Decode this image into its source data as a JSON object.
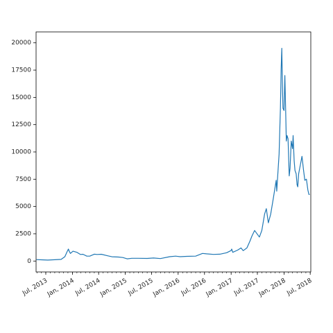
{
  "chart_data": {
    "type": "line",
    "title": "",
    "xlabel": "",
    "ylabel": "",
    "grid": false,
    "legend": "none",
    "line_color": "#1f77b4",
    "xlim": [
      "2013-04-25",
      "2018-07-05"
    ],
    "ylim": [
      -1000,
      21000
    ],
    "y_ticks": [
      0,
      2500,
      5000,
      7500,
      10000,
      12500,
      15000,
      17500,
      20000
    ],
    "y_tick_labels": [
      "0",
      "2500",
      "5000",
      "7500",
      "10000",
      "12500",
      "15000",
      "17500",
      "20000"
    ],
    "x_ticks": [
      "2013-07-01",
      "2014-01-01",
      "2014-07-01",
      "2015-01-01",
      "2015-07-01",
      "2016-01-01",
      "2016-07-01",
      "2017-01-01",
      "2017-07-01",
      "2018-01-01",
      "2018-07-01"
    ],
    "x_tick_labels": [
      "Jul, 2013",
      "Jan, 2014",
      "Jul, 2014",
      "Jan, 2015",
      "Jul, 2015",
      "Jan, 2016",
      "Jul, 2016",
      "Jan, 2017",
      "Jul, 2017",
      "Jan, 2018",
      "Jul, 2018"
    ],
    "series": [
      {
        "x": [
          "2013-04-28",
          "2013-06-01",
          "2013-07-15",
          "2013-09-01",
          "2013-10-15",
          "2013-11-10",
          "2013-11-25",
          "2013-12-04",
          "2013-12-10",
          "2013-12-18",
          "2014-01-05",
          "2014-02-01",
          "2014-02-25",
          "2014-03-15",
          "2014-04-10",
          "2014-05-01",
          "2014-06-01",
          "2014-06-20",
          "2014-07-20",
          "2014-09-01",
          "2014-10-01",
          "2014-11-15",
          "2014-12-15",
          "2015-01-14",
          "2015-02-15",
          "2015-04-01",
          "2015-06-01",
          "2015-07-15",
          "2015-09-01",
          "2015-11-04",
          "2015-12-15",
          "2016-01-15",
          "2016-03-01",
          "2016-05-01",
          "2016-06-17",
          "2016-07-15",
          "2016-09-01",
          "2016-10-15",
          "2016-12-01",
          "2016-12-31",
          "2017-01-05",
          "2017-01-12",
          "2017-02-15",
          "2017-03-10",
          "2017-03-25",
          "2017-04-20",
          "2017-05-10",
          "2017-05-25",
          "2017-06-12",
          "2017-07-15",
          "2017-08-01",
          "2017-08-20",
          "2017-09-01",
          "2017-09-15",
          "2017-10-01",
          "2017-10-20",
          "2017-11-08",
          "2017-11-12",
          "2017-11-28",
          "2017-12-07",
          "2017-12-10",
          "2017-12-12",
          "2017-12-17",
          "2017-12-22",
          "2017-12-25",
          "2018-01-01",
          "2018-01-07",
          "2018-01-12",
          "2018-01-17",
          "2018-01-22",
          "2018-01-29",
          "2018-02-06",
          "2018-02-12",
          "2018-02-20",
          "2018-03-01",
          "2018-03-05",
          "2018-03-12",
          "2018-03-18",
          "2018-03-26",
          "2018-04-01",
          "2018-04-06",
          "2018-04-12",
          "2018-04-25",
          "2018-05-05",
          "2018-05-15",
          "2018-05-25",
          "2018-06-05",
          "2018-06-15",
          "2018-06-22",
          "2018-06-28"
        ],
        "y": [
          130,
          110,
          90,
          120,
          150,
          400,
          850,
          1100,
          900,
          700,
          900,
          800,
          600,
          620,
          450,
          450,
          630,
          600,
          620,
          480,
          390,
          370,
          320,
          200,
          250,
          250,
          240,
          280,
          230,
          400,
          450,
          400,
          430,
          450,
          700,
          660,
          610,
          630,
          760,
          960,
          1100,
          800,
          1000,
          1200,
          950,
          1200,
          1800,
          2300,
          2800,
          2200,
          2800,
          4300,
          4800,
          3500,
          4300,
          5800,
          7400,
          6400,
          9800,
          14000,
          16000,
          17500,
          19500,
          15500,
          14000,
          13800,
          17000,
          14000,
          11000,
          11500,
          11200,
          7800,
          8500,
          11000,
          10300,
          11500,
          9200,
          8300,
          8000,
          7000,
          6800,
          8000,
          8900,
          9600,
          8400,
          7400,
          7500,
          6500,
          6100,
          6100
        ]
      }
    ]
  }
}
